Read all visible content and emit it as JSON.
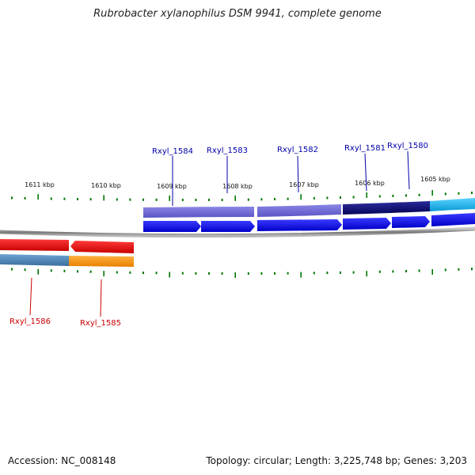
{
  "title": "Rubrobacter xylanophilus DSM 9941, complete genome",
  "footer": {
    "accession": "Accession: NC_008148",
    "summary": "Topology: circular; Length: 3,225,748 bp; Genes: 3,203"
  },
  "ruler": {
    "unit": "kbp",
    "labels": [
      "1611 kbp",
      "1610 kbp",
      "1609 kbp",
      "1608 kbp",
      "1607 kbp",
      "1606 kbp",
      "1605 kbp"
    ]
  },
  "genes_top": [
    {
      "name": "Rxyl_1584",
      "color": "#0000aa"
    },
    {
      "name": "Rxyl_1583",
      "color": "#0000aa"
    },
    {
      "name": "Rxyl_1582",
      "color": "#0000aa"
    },
    {
      "name": "Rxyl_1581",
      "color": "#0000aa"
    },
    {
      "name": "Rxyl_1580",
      "color": "#0000aa"
    }
  ],
  "genes_bottom": [
    {
      "name": "Rxyl_1586",
      "color": "#cc0000"
    },
    {
      "name": "Rxyl_1585",
      "color": "#cc0000"
    }
  ],
  "colors": {
    "forward_cds": "#0000ee",
    "forward_gene_light": "#6f6ad6",
    "forward_gene_dark": "#0a0a7a",
    "forward_gene_cyan": "#1ab8ee",
    "reverse_cds": "#ee0000",
    "reverse_gene_blue": "#4d86b8",
    "reverse_gene_orange": "#ff9500",
    "tick": "#007700",
    "backbone": "#888888"
  }
}
